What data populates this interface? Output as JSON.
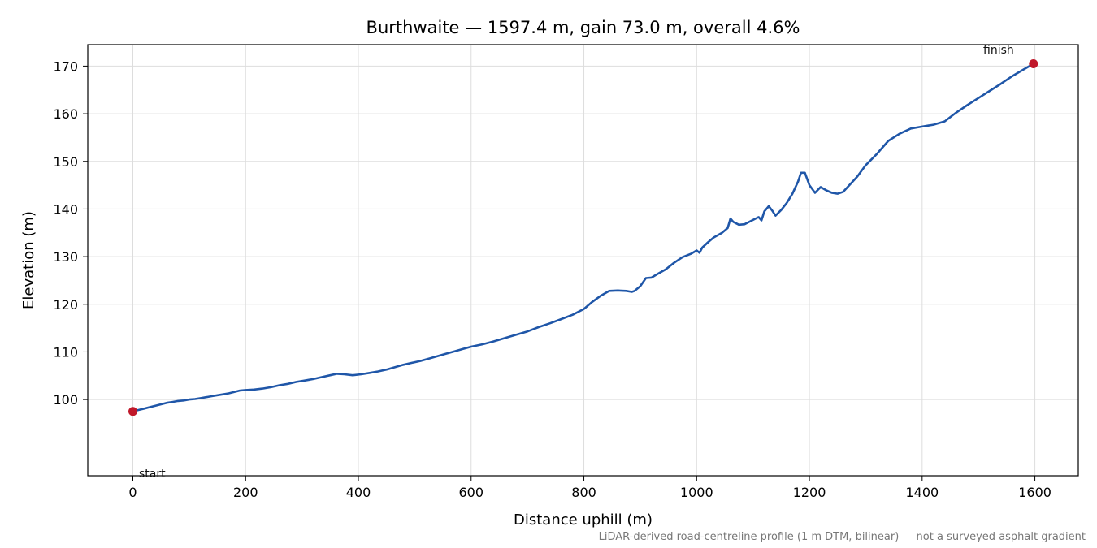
{
  "chart_data": {
    "type": "line",
    "title": "Burthwaite — 1597.4 m, gain 73.0 m, overall 4.6%",
    "xlabel": "Distance uphill (m)",
    "ylabel": "Elevation (m)",
    "xlim": [
      -80,
      1677
    ],
    "ylim": [
      84,
      174.5
    ],
    "xticks": [
      0,
      200,
      400,
      600,
      800,
      1000,
      1200,
      1400,
      1600
    ],
    "yticks": [
      100,
      110,
      120,
      130,
      140,
      150,
      160,
      170
    ],
    "grid": true,
    "line_color": "#1f56a8",
    "marker_color": "#c0182a",
    "series": [
      {
        "x": [
          0,
          10,
          20,
          30,
          40,
          50,
          60,
          70,
          80,
          90,
          100,
          110,
          120,
          130,
          140,
          150,
          160,
          170,
          180,
          190,
          200,
          215,
          230,
          245,
          260,
          275,
          290,
          305,
          320,
          335,
          350,
          362,
          375,
          390,
          405,
          420,
          435,
          450,
          465,
          480,
          495,
          510,
          525,
          540,
          555,
          570,
          585,
          600,
          620,
          640,
          660,
          680,
          700,
          720,
          740,
          760,
          780,
          800,
          815,
          830,
          845,
          860,
          875,
          885,
          890,
          900,
          910,
          920,
          930,
          945,
          960,
          975,
          990,
          1000,
          1005,
          1010,
          1020,
          1030,
          1045,
          1055,
          1060,
          1065,
          1075,
          1085,
          1100,
          1110,
          1115,
          1120,
          1128,
          1135,
          1140,
          1150,
          1160,
          1170,
          1180,
          1185,
          1192,
          1200,
          1210,
          1220,
          1230,
          1240,
          1250,
          1260,
          1270,
          1285,
          1300,
          1320,
          1340,
          1360,
          1380,
          1400,
          1420,
          1440,
          1460,
          1480,
          1500,
          1520,
          1540,
          1560,
          1580,
          1597.4
        ],
        "y": [
          97.5,
          97.8,
          98.1,
          98.4,
          98.7,
          99.0,
          99.3,
          99.5,
          99.7,
          99.8,
          100.0,
          100.1,
          100.3,
          100.5,
          100.7,
          100.9,
          101.1,
          101.3,
          101.6,
          101.9,
          102.0,
          102.1,
          102.3,
          102.6,
          103.0,
          103.3,
          103.7,
          104.0,
          104.3,
          104.7,
          105.1,
          105.4,
          105.3,
          105.1,
          105.3,
          105.6,
          105.9,
          106.3,
          106.8,
          107.3,
          107.7,
          108.1,
          108.6,
          109.1,
          109.6,
          110.1,
          110.6,
          111.1,
          111.6,
          112.2,
          112.9,
          113.6,
          114.3,
          115.2,
          116.0,
          116.9,
          117.8,
          119.0,
          120.5,
          121.8,
          122.8,
          122.9,
          122.8,
          122.6,
          122.8,
          123.8,
          125.5,
          125.6,
          126.3,
          127.3,
          128.7,
          129.9,
          130.6,
          131.3,
          130.8,
          131.9,
          133.0,
          134.0,
          135.0,
          136.0,
          138.0,
          137.3,
          136.7,
          136.8,
          137.7,
          138.3,
          137.6,
          139.5,
          140.6,
          139.5,
          138.6,
          139.8,
          141.3,
          143.2,
          145.8,
          147.6,
          147.6,
          145.0,
          143.4,
          144.6,
          143.9,
          143.4,
          143.2,
          143.6,
          144.9,
          146.8,
          149.2,
          151.6,
          154.3,
          155.8,
          156.9,
          157.3,
          157.7,
          158.4,
          160.2,
          161.8,
          163.3,
          164.8,
          166.3,
          167.9,
          169.3,
          170.5
        ]
      }
    ],
    "annotations": {
      "start": "start",
      "finish": "finish"
    },
    "footnote": "LiDAR-derived road-centreline profile (1 m DTM, bilinear) — not a surveyed asphalt gradient"
  }
}
